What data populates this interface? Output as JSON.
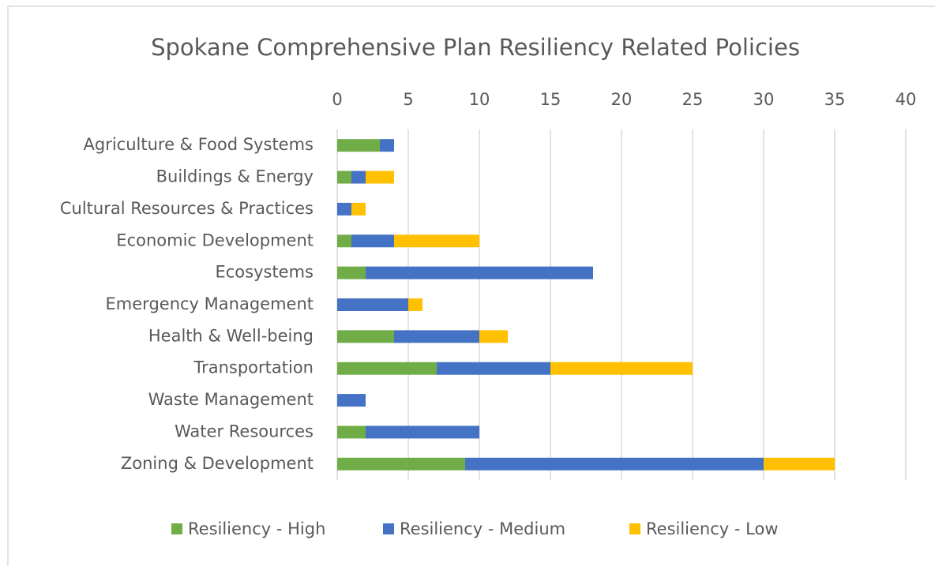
{
  "chart_data": {
    "type": "stacked_barh",
    "title": "Spokane Comprehensive Plan Resiliency Related Policies",
    "categories": [
      "Agriculture & Food Systems",
      "Buildings & Energy",
      "Cultural Resources & Practices",
      "Economic Development",
      "Ecosystems",
      "Emergency Management",
      "Health & Well-being",
      "Transportation",
      "Waste Management",
      "Water Resources",
      "Zoning & Development"
    ],
    "series": [
      {
        "name": "Resiliency - High",
        "color": "#70ad47",
        "values": [
          3,
          1,
          0,
          1,
          2,
          0,
          4,
          7,
          0,
          2,
          9
        ]
      },
      {
        "name": "Resiliency - Medium",
        "color": "#4472c4",
        "values": [
          1,
          1,
          1,
          3,
          16,
          5,
          6,
          8,
          2,
          8,
          21
        ]
      },
      {
        "name": "Resiliency - Low",
        "color": "#ffc000",
        "values": [
          0,
          2,
          1,
          6,
          0,
          1,
          2,
          10,
          0,
          0,
          5
        ]
      }
    ],
    "xlim": [
      0,
      40
    ],
    "xticks": [
      0,
      5,
      10,
      15,
      20,
      25,
      30,
      35,
      40
    ],
    "grid": true,
    "legend": "bottom"
  }
}
